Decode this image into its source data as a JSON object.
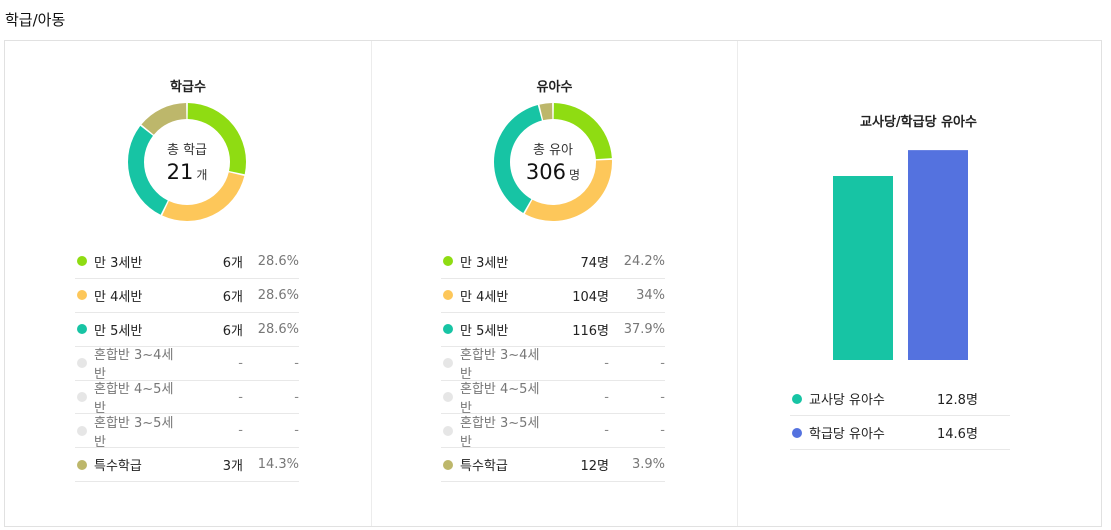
{
  "page_title": "학급/아동",
  "colors": {
    "age3": "#8fdc12",
    "age4": "#fdc75a",
    "age5": "#17c4a4",
    "mixed": "#e6e6e6",
    "special": "#bdb76b",
    "teacher": "#17c4a4",
    "class": "#5472df"
  },
  "panel1": {
    "title": "학급수",
    "center_label": "총 학급",
    "center_value": "21",
    "center_unit": "개",
    "rows": [
      {
        "label": "만 3세반",
        "count": "6개",
        "pct": "28.6%",
        "color": "#8fdc12"
      },
      {
        "label": "만 4세반",
        "count": "6개",
        "pct": "28.6%",
        "color": "#fdc75a"
      },
      {
        "label": "만 5세반",
        "count": "6개",
        "pct": "28.6%",
        "color": "#17c4a4"
      },
      {
        "label": "혼합반 3~4세반",
        "count": "-",
        "pct": "-",
        "color": "#e6e6e6"
      },
      {
        "label": "혼합반 4~5세반",
        "count": "-",
        "pct": "-",
        "color": "#e6e6e6"
      },
      {
        "label": "혼합반 3~5세반",
        "count": "-",
        "pct": "-",
        "color": "#e6e6e6"
      },
      {
        "label": "특수학급",
        "count": "3개",
        "pct": "14.3%",
        "color": "#bdb76b"
      }
    ]
  },
  "panel2": {
    "title": "유아수",
    "center_label": "총 유아",
    "center_value": "306",
    "center_unit": "명",
    "rows": [
      {
        "label": "만 3세반",
        "count": "74명",
        "pct": "24.2%",
        "color": "#8fdc12"
      },
      {
        "label": "만 4세반",
        "count": "104명",
        "pct": "34%",
        "color": "#fdc75a"
      },
      {
        "label": "만 5세반",
        "count": "116명",
        "pct": "37.9%",
        "color": "#17c4a4"
      },
      {
        "label": "혼합반 3~4세반",
        "count": "-",
        "pct": "-",
        "color": "#e6e6e6"
      },
      {
        "label": "혼합반 4~5세반",
        "count": "-",
        "pct": "-",
        "color": "#e6e6e6"
      },
      {
        "label": "혼합반 3~5세반",
        "count": "-",
        "pct": "-",
        "color": "#e6e6e6"
      },
      {
        "label": "특수학급",
        "count": "12명",
        "pct": "3.9%",
        "color": "#bdb76b"
      }
    ]
  },
  "panel3": {
    "title": "교사당/학급당 유아수",
    "rows": [
      {
        "label": "교사당 유아수",
        "value": "12.8명",
        "color": "#17c4a4"
      },
      {
        "label": "학급당 유아수",
        "value": "14.6명",
        "color": "#5472df"
      }
    ]
  },
  "chart_data": [
    {
      "type": "pie",
      "title": "학급수",
      "categories": [
        "만 3세반",
        "만 4세반",
        "만 5세반",
        "혼합반 3~4세반",
        "혼합반 4~5세반",
        "혼합반 3~5세반",
        "특수학급"
      ],
      "values": [
        6,
        6,
        6,
        0,
        0,
        0,
        3
      ],
      "colors": [
        "#8fdc12",
        "#fdc75a",
        "#17c4a4",
        "#e6e6e6",
        "#e6e6e6",
        "#e6e6e6",
        "#bdb76b"
      ]
    },
    {
      "type": "pie",
      "title": "유아수",
      "categories": [
        "만 3세반",
        "만 4세반",
        "만 5세반",
        "혼합반 3~4세반",
        "혼합반 4~5세반",
        "혼합반 3~5세반",
        "특수학급"
      ],
      "values": [
        74,
        104,
        116,
        0,
        0,
        0,
        12
      ],
      "colors": [
        "#8fdc12",
        "#fdc75a",
        "#17c4a4",
        "#e6e6e6",
        "#e6e6e6",
        "#e6e6e6",
        "#bdb76b"
      ]
    },
    {
      "type": "bar",
      "title": "교사당/학급당 유아수",
      "categories": [
        "교사당 유아수",
        "학급당 유아수"
      ],
      "values": [
        12.8,
        14.6
      ],
      "colors": [
        "#17c4a4",
        "#5472df"
      ],
      "ylim": [
        0,
        16
      ]
    }
  ]
}
